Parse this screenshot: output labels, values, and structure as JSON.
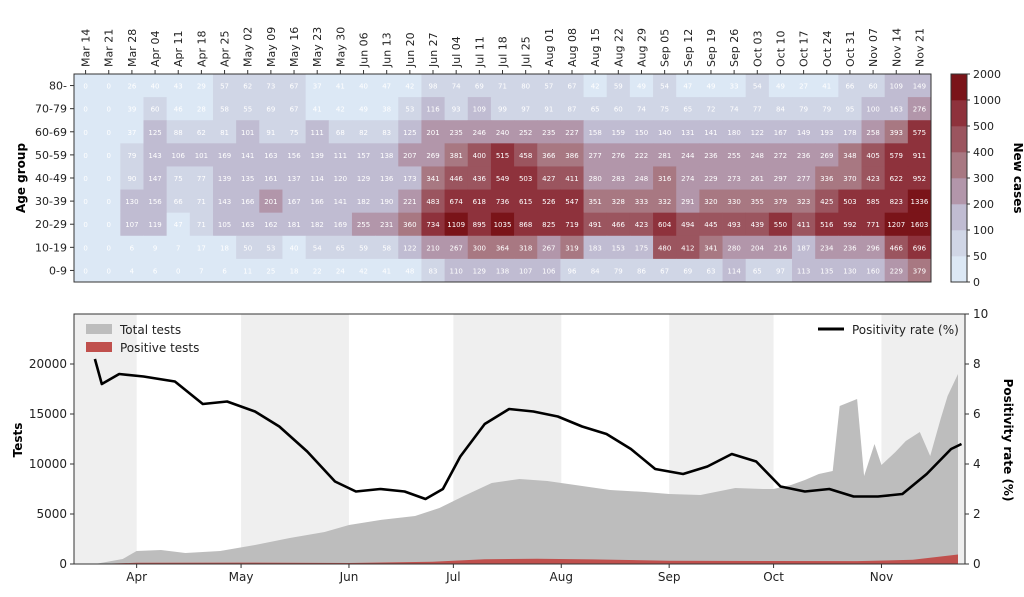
{
  "chart_data": [
    {
      "type": "heatmap",
      "ylabel": "Age group",
      "colorbar_label": "New cases",
      "colorbar_ticks": [
        "0",
        "50",
        "100",
        "200",
        "300",
        "400",
        "500",
        "1000",
        "2000"
      ],
      "colorbar_levels": [
        0,
        50,
        100,
        200,
        300,
        400,
        500,
        1000,
        2000
      ],
      "weeks": [
        "Mar 14",
        "Mar 21",
        "Mar 28",
        "Apr 04",
        "Apr 11",
        "Apr 18",
        "Apr 25",
        "May 02",
        "May 09",
        "May 16",
        "May 23",
        "May 30",
        "Jun 06",
        "Jun 13",
        "Jun 20",
        "Jun 27",
        "Jul 04",
        "Jul 11",
        "Jul 18",
        "Jul 25",
        "Aug 01",
        "Aug 08",
        "Aug 15",
        "Aug 22",
        "Aug 29",
        "Sep 05",
        "Sep 12",
        "Sep 19",
        "Sep 26",
        "Oct 03",
        "Oct 10",
        "Oct 17",
        "Oct 24",
        "Oct 31",
        "Nov 07",
        "Nov 14",
        "Nov 21"
      ],
      "age_groups": [
        "80-",
        "70-79",
        "60-69",
        "50-59",
        "40-49",
        "30-39",
        "20-29",
        "10-19",
        "0-9"
      ],
      "values": [
        [
          0,
          0,
          26,
          40,
          43,
          29,
          57,
          62,
          73,
          67,
          37,
          41,
          40,
          47,
          42,
          98,
          74,
          69,
          71,
          80,
          57,
          67,
          42,
          59,
          49,
          54,
          47,
          49,
          33,
          54,
          49,
          27,
          41,
          66,
          60,
          109,
          149
        ],
        [
          0,
          0,
          39,
          60,
          46,
          28,
          58,
          55,
          69,
          67,
          41,
          42,
          49,
          38,
          53,
          116,
          93,
          109,
          99,
          97,
          91,
          87,
          65,
          60,
          74,
          75,
          65,
          72,
          74,
          77,
          84,
          79,
          79,
          95,
          100,
          163,
          276
        ],
        [
          0,
          0,
          37,
          125,
          88,
          62,
          81,
          101,
          91,
          75,
          111,
          68,
          82,
          83,
          125,
          201,
          235,
          246,
          240,
          252,
          235,
          227,
          158,
          159,
          150,
          140,
          131,
          141,
          180,
          122,
          167,
          149,
          193,
          178,
          258,
          393,
          575
        ],
        [
          0,
          0,
          79,
          143,
          106,
          101,
          169,
          141,
          163,
          156,
          139,
          111,
          157,
          138,
          207,
          269,
          381,
          400,
          515,
          458,
          366,
          386,
          277,
          276,
          222,
          281,
          244,
          236,
          255,
          248,
          272,
          236,
          269,
          348,
          405,
          579,
          911
        ],
        [
          0,
          0,
          90,
          147,
          75,
          77,
          139,
          135,
          161,
          137,
          114,
          120,
          129,
          136,
          173,
          341,
          446,
          436,
          549,
          503,
          427,
          411,
          280,
          283,
          248,
          316,
          274,
          229,
          273,
          261,
          297,
          277,
          336,
          370,
          423,
          622,
          952
        ],
        [
          0,
          0,
          130,
          156,
          66,
          71,
          143,
          166,
          201,
          167,
          166,
          141,
          182,
          190,
          221,
          483,
          674,
          618,
          736,
          615,
          526,
          547,
          351,
          328,
          333,
          332,
          291,
          320,
          330,
          355,
          379,
          323,
          425,
          503,
          585,
          823,
          1336
        ],
        [
          0,
          0,
          107,
          119,
          47,
          71,
          105,
          163,
          162,
          181,
          182,
          169,
          255,
          231,
          360,
          734,
          1109,
          895,
          1035,
          868,
          825,
          719,
          491,
          466,
          423,
          604,
          494,
          445,
          493,
          439,
          550,
          411,
          516,
          592,
          771,
          1207,
          1603
        ],
        [
          0,
          0,
          6,
          9,
          7,
          17,
          18,
          50,
          53,
          40,
          54,
          65,
          59,
          58,
          122,
          210,
          267,
          300,
          364,
          318,
          267,
          319,
          183,
          153,
          175,
          480,
          412,
          341,
          280,
          204,
          216,
          187,
          234,
          236,
          296,
          466,
          696
        ],
        [
          0,
          0,
          4,
          6,
          0,
          7,
          6,
          11,
          25,
          18,
          22,
          24,
          42,
          41,
          48,
          83,
          110,
          129,
          138,
          107,
          106,
          96,
          84,
          79,
          86,
          67,
          69,
          63,
          114,
          65,
          97,
          113,
          135,
          130,
          160,
          229,
          379
        ]
      ]
    },
    {
      "type": "area",
      "ylabel": "Tests",
      "y2label": "Positivity rate (%)",
      "ylim": [
        0,
        25000
      ],
      "y2lim": [
        0,
        10
      ],
      "yticks": [
        "0",
        "5000",
        "10000",
        "15000",
        "20000"
      ],
      "y2ticks": [
        "0",
        "2",
        "4",
        "6",
        "8",
        "10"
      ],
      "months": [
        "Apr",
        "May",
        "Jun",
        "Jul",
        "Aug",
        "Sep",
        "Oct",
        "Nov"
      ],
      "legend_left": [
        "Total tests",
        "Positive tests"
      ],
      "legend_right": [
        "Positivity rate (%)"
      ],
      "colors": {
        "total": "#bdbdbd",
        "positive": "#c0504d",
        "rate": "#000000",
        "band": "#efefef"
      },
      "x_start": "Mar 14",
      "series": [
        {
          "name": "Total tests",
          "x": [
            "Mar 20",
            "Mar 28",
            "Apr 01",
            "Apr 08",
            "Apr 15",
            "Apr 25",
            "May 05",
            "May 15",
            "May 25",
            "Jun 01",
            "Jun 10",
            "Jun 20",
            "Jun 27",
            "Jul 04",
            "Jul 12",
            "Jul 20",
            "Jul 28",
            "Aug 05",
            "Aug 15",
            "Aug 25",
            "Sep 01",
            "Sep 10",
            "Sep 20",
            "Sep 28",
            "Oct 01",
            "Oct 06",
            "Oct 10",
            "Oct 14",
            "Oct 18",
            "Oct 20",
            "Oct 25",
            "Oct 27",
            "Oct 30",
            "Nov 01",
            "Nov 05",
            "Nov 08",
            "Nov 12",
            "Nov 15",
            "Nov 18",
            "Nov 20",
            "Nov 23"
          ],
          "values": [
            0,
            500,
            1300,
            1400,
            1100,
            1300,
            1900,
            2600,
            3200,
            3900,
            4400,
            4800,
            5600,
            6800,
            8100,
            8500,
            8300,
            7900,
            7400,
            7200,
            7000,
            6900,
            7600,
            7500,
            7500,
            7900,
            8400,
            9000,
            9300,
            15800,
            16500,
            8800,
            12000,
            9900,
            11200,
            12300,
            13200,
            10800,
            14500,
            16800,
            19000
          ]
        },
        {
          "name": "Positive tests",
          "x": [
            "Mar 20",
            "Apr 01",
            "May 01",
            "Jun 01",
            "Jun 25",
            "Jul 10",
            "Jul 25",
            "Aug 10",
            "Sep 01",
            "Oct 01",
            "Oct 25",
            "Nov 10",
            "Nov 23"
          ],
          "values": [
            0,
            120,
            140,
            100,
            230,
            480,
            520,
            460,
            330,
            300,
            290,
            420,
            950
          ]
        },
        {
          "name": "Positivity rate (%)",
          "x": [
            "Mar 20",
            "Mar 22",
            "Mar 27",
            "Apr 03",
            "Apr 12",
            "Apr 20",
            "Apr 27",
            "May 05",
            "May 12",
            "May 20",
            "May 28",
            "Jun 03",
            "Jun 10",
            "Jun 17",
            "Jun 23",
            "Jun 28",
            "Jul 03",
            "Jul 10",
            "Jul 17",
            "Jul 24",
            "Jul 31",
            "Aug 07",
            "Aug 14",
            "Aug 21",
            "Aug 28",
            "Sep 05",
            "Sep 12",
            "Sep 19",
            "Sep 26",
            "Oct 03",
            "Oct 10",
            "Oct 17",
            "Oct 24",
            "Oct 31",
            "Nov 07",
            "Nov 14",
            "Nov 21",
            "Nov 24"
          ],
          "values": [
            8.2,
            7.2,
            7.6,
            7.5,
            7.3,
            6.4,
            6.5,
            6.1,
            5.5,
            4.5,
            3.3,
            2.9,
            3.0,
            2.9,
            2.6,
            3.0,
            4.3,
            5.6,
            6.2,
            6.1,
            5.9,
            5.5,
            5.2,
            4.6,
            3.8,
            3.6,
            3.9,
            4.4,
            4.1,
            3.1,
            2.9,
            3.0,
            2.7,
            2.7,
            2.8,
            3.6,
            4.6,
            4.8
          ]
        }
      ]
    }
  ]
}
